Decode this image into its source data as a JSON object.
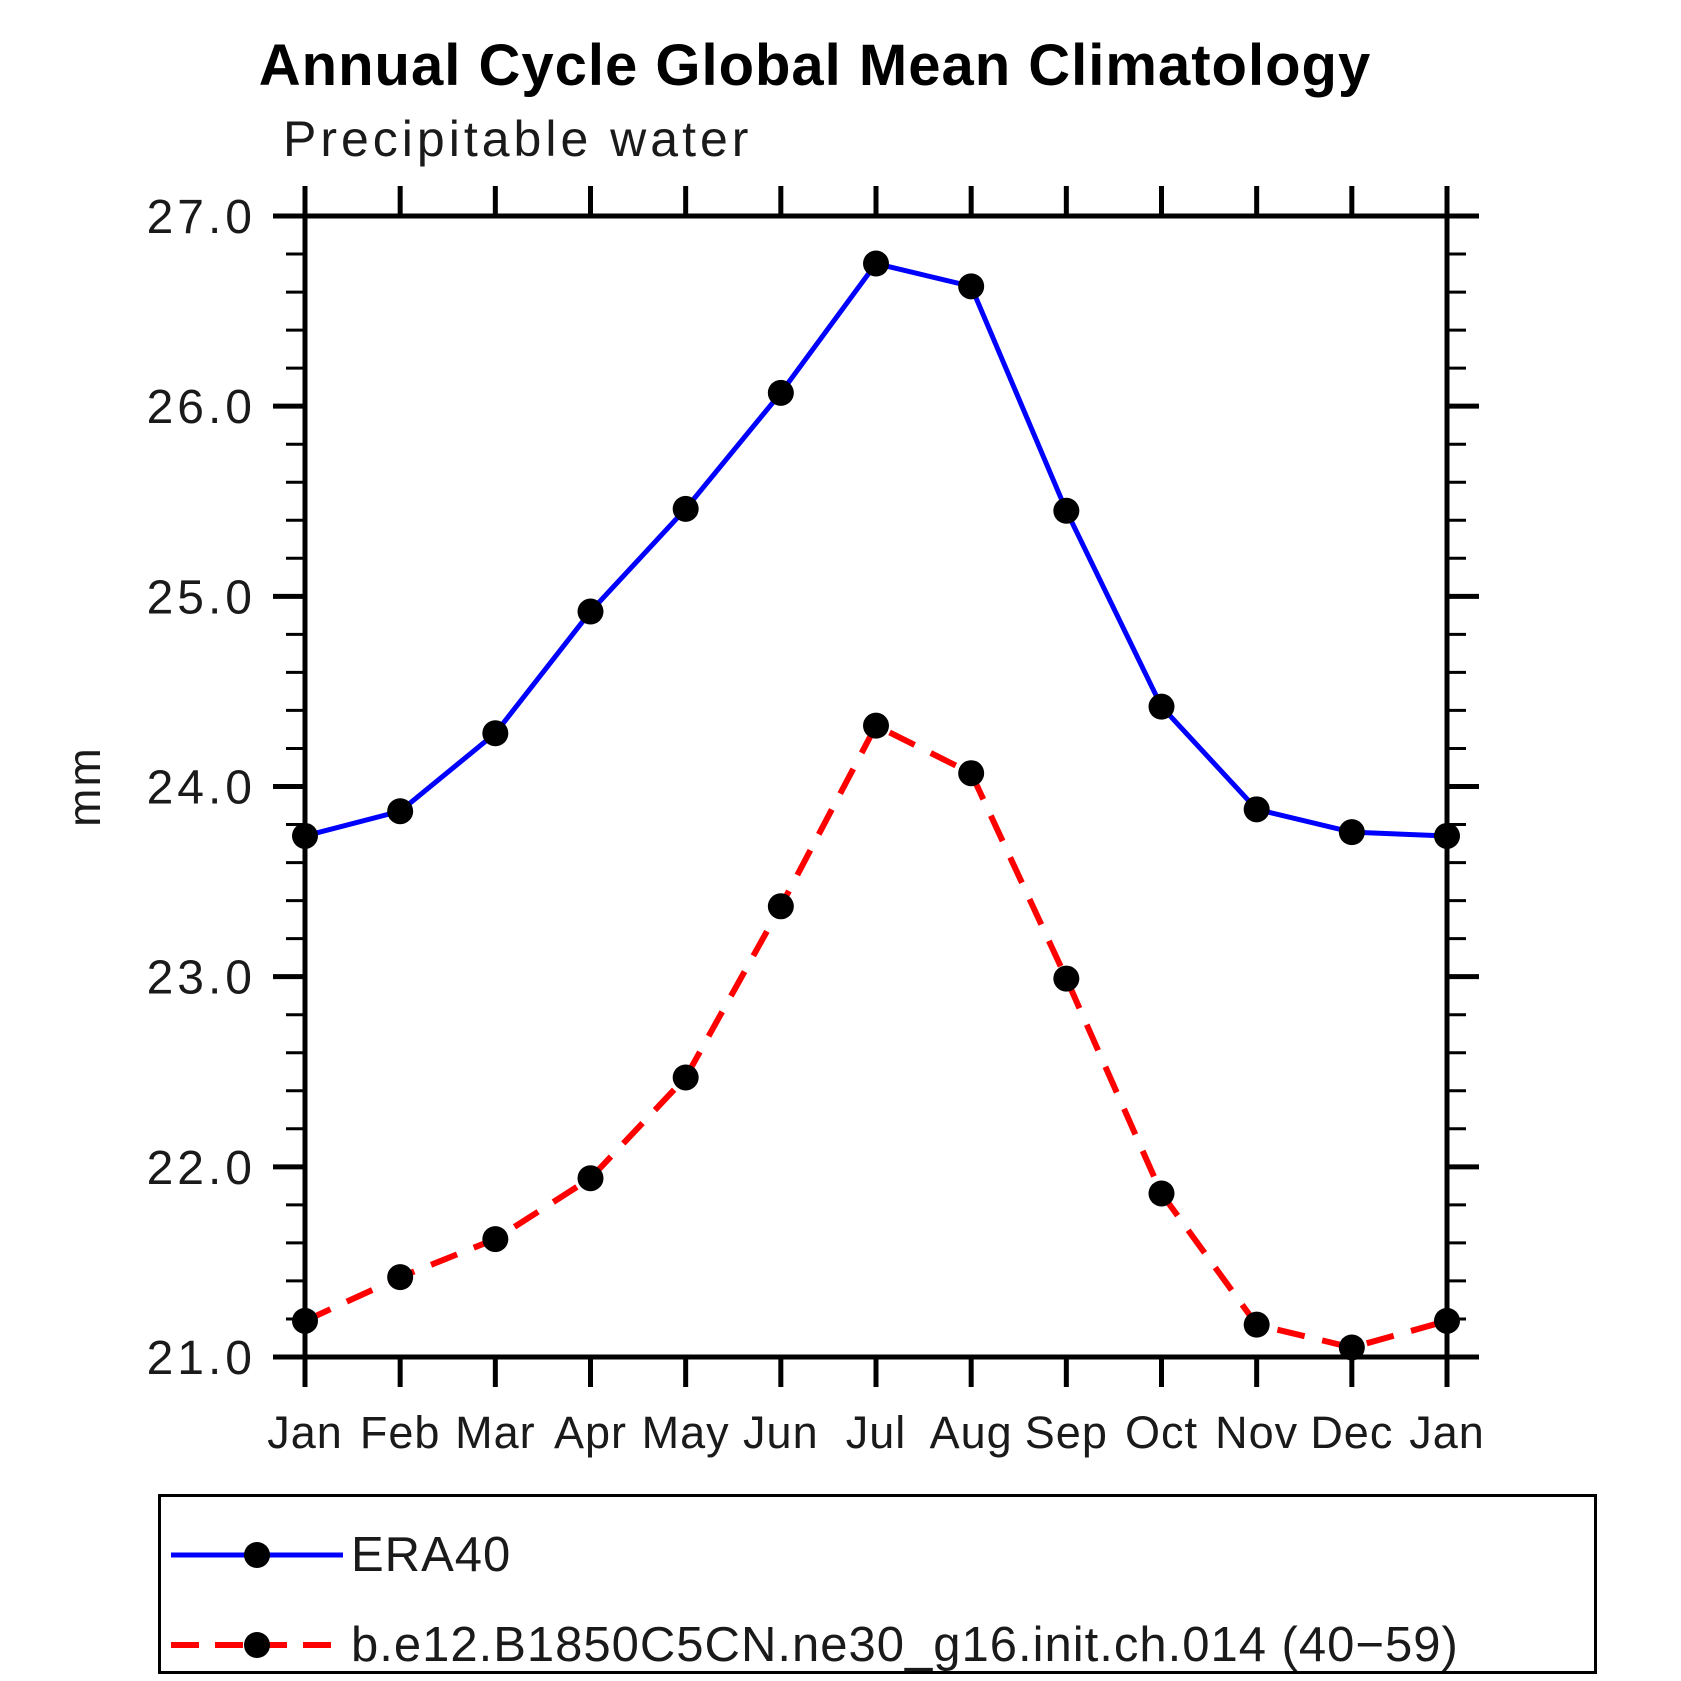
{
  "title": "Annual Cycle Global Mean Climatology",
  "subtitle": "Precipitable water",
  "chart_data": {
    "type": "line",
    "title": "Annual Cycle Global Mean Climatology",
    "subtitle": "Precipitable water",
    "xlabel": "",
    "ylabel": "mm",
    "ylim": [
      21.0,
      27.0
    ],
    "ytick_labels": [
      "21.0",
      "22.0",
      "23.0",
      "24.0",
      "25.0",
      "26.0",
      "27.0"
    ],
    "ytick_values": [
      21.0,
      22.0,
      23.0,
      24.0,
      25.0,
      26.0,
      27.0
    ],
    "ytick_minor_step": 0.2,
    "grid": false,
    "legend_position": "bottom-left-box",
    "categories": [
      "Jan",
      "Feb",
      "Mar",
      "Apr",
      "May",
      "Jun",
      "Jul",
      "Aug",
      "Sep",
      "Oct",
      "Nov",
      "Dec",
      "Jan"
    ],
    "series": [
      {
        "name": "ERA40",
        "color": "#0000ff",
        "style": "solid",
        "marker": "filled-black-circle",
        "values": [
          23.74,
          23.87,
          24.28,
          24.92,
          25.46,
          26.07,
          26.75,
          26.63,
          25.45,
          24.42,
          23.88,
          23.76,
          23.74
        ]
      },
      {
        "name": "b.e12.B1850C5CN.ne30_g16.init.ch.014 (40−59)",
        "color": "#ff0000",
        "style": "dashed",
        "marker": "filled-black-circle",
        "values": [
          21.19,
          21.42,
          21.62,
          21.94,
          22.47,
          23.37,
          24.32,
          24.07,
          22.99,
          21.86,
          21.17,
          21.05,
          21.19
        ]
      }
    ],
    "colors": {
      "axis": "#000000",
      "marker": "#000000"
    }
  }
}
